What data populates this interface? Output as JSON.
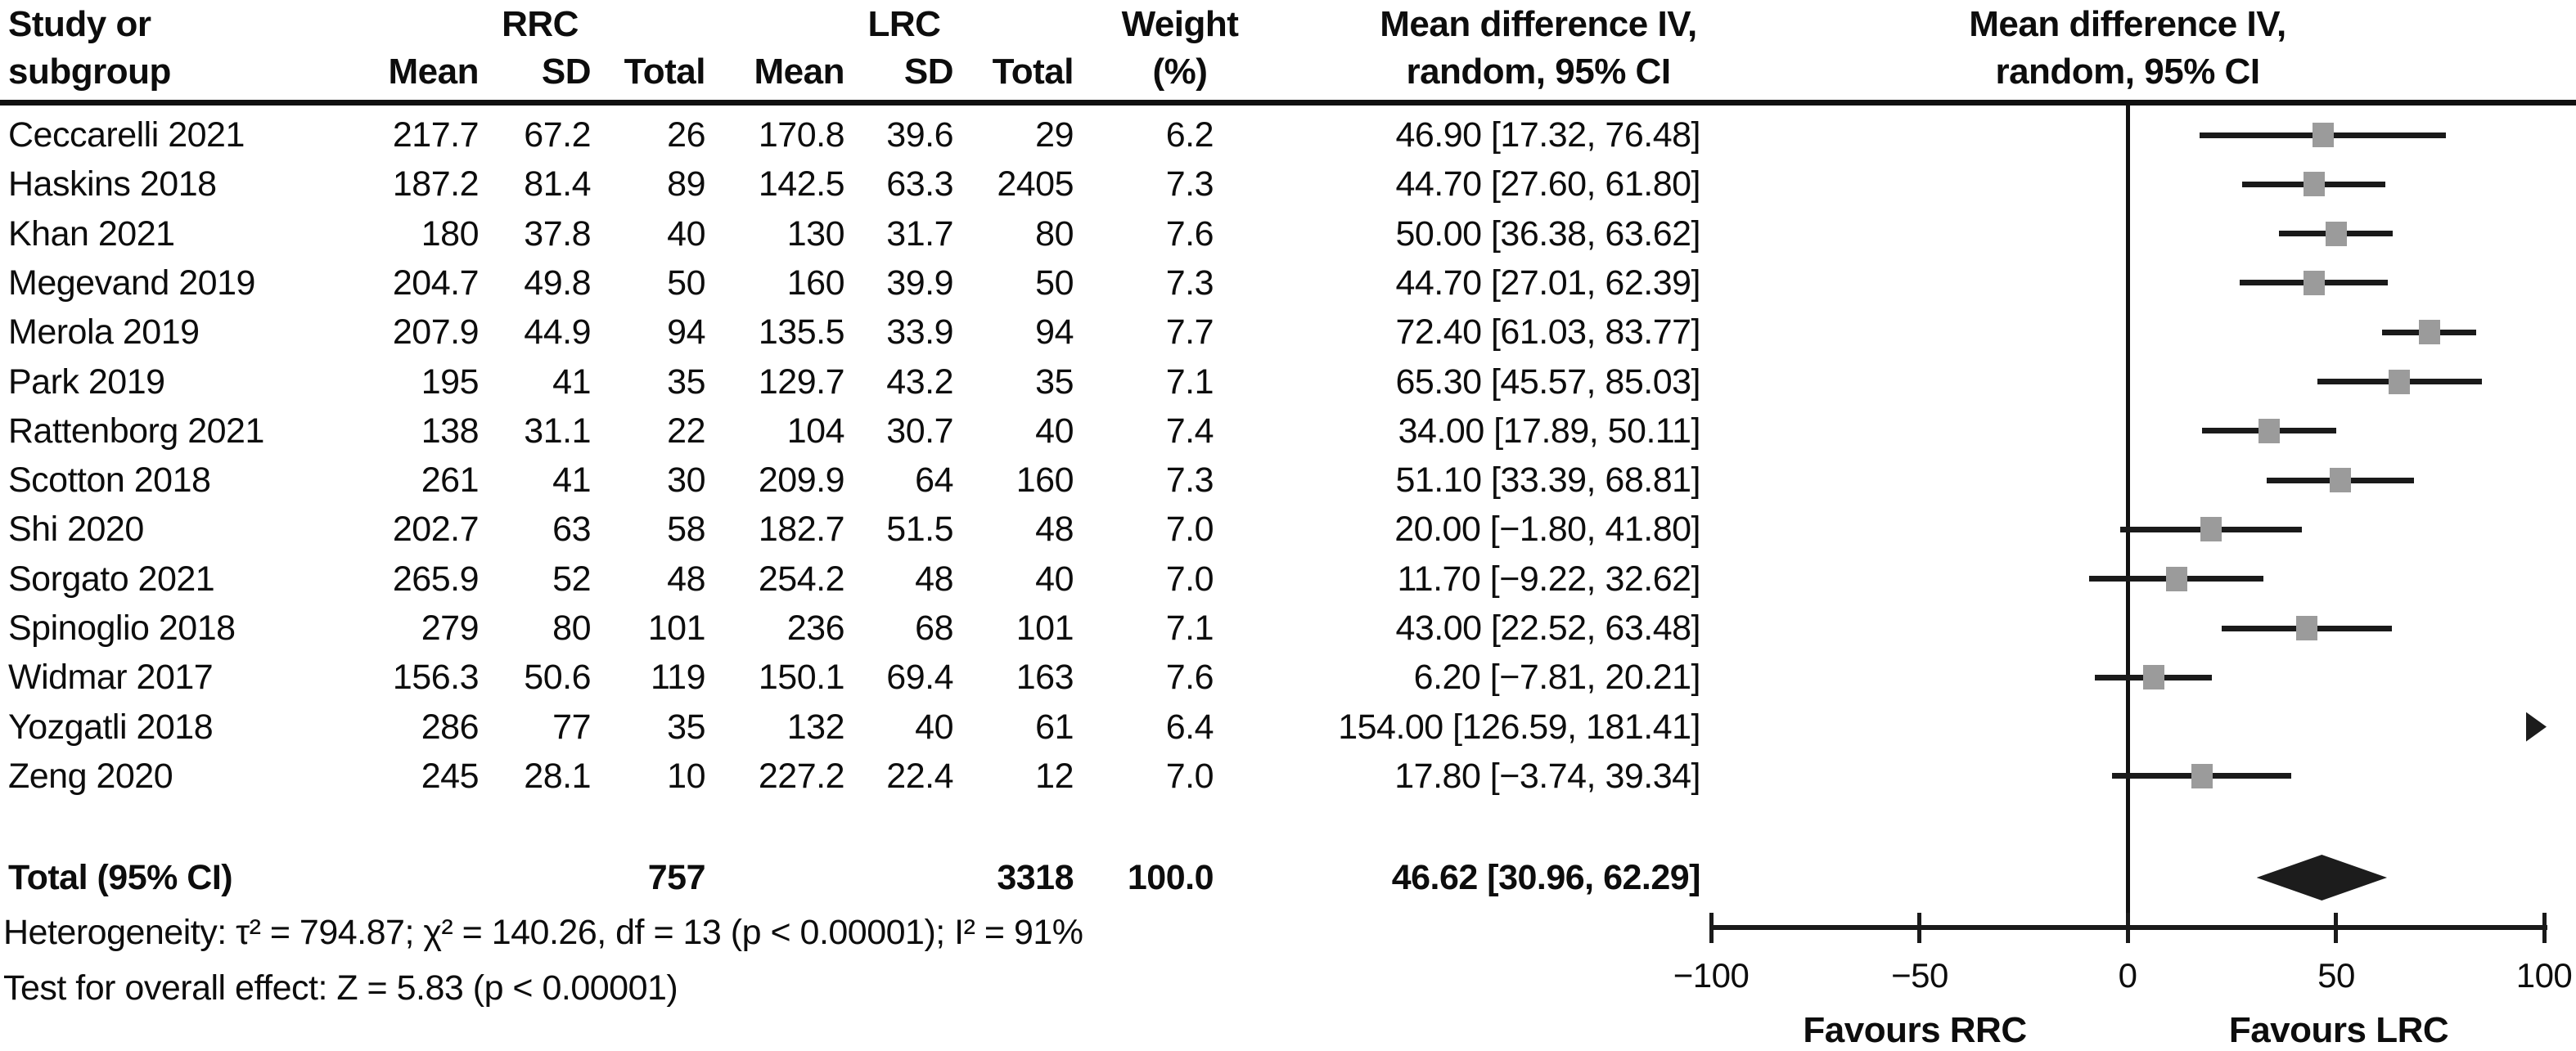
{
  "table": {
    "header": {
      "study_line1": "Study or",
      "study_line2": "subgroup",
      "group_rrc": "RRC",
      "group_lrc": "LRC",
      "rrc_mean": "Mean",
      "rrc_sd": "SD",
      "rrc_total": "Total",
      "lrc_mean": "Mean",
      "lrc_sd": "SD",
      "lrc_total": "Total",
      "weight_line1": "Weight",
      "weight_line2": "(%)",
      "effect_line1": "Mean difference IV,",
      "effect_line2": "random, 95% CI"
    },
    "rows": [
      {
        "name": "Ceccarelli 2021",
        "rrc_mean": "217.7",
        "rrc_sd": "67.2",
        "rrc_total": "26",
        "lrc_mean": "170.8",
        "lrc_sd": "39.6",
        "lrc_total": "29",
        "weight": "6.2",
        "effect": "46.90 [17.32, 76.48]"
      },
      {
        "name": "Haskins 2018",
        "rrc_mean": "187.2",
        "rrc_sd": "81.4",
        "rrc_total": "89",
        "lrc_mean": "142.5",
        "lrc_sd": "63.3",
        "lrc_total": "2405",
        "weight": "7.3",
        "effect": "44.70 [27.60, 61.80]"
      },
      {
        "name": "Khan 2021",
        "rrc_mean": "180",
        "rrc_sd": "37.8",
        "rrc_total": "40",
        "lrc_mean": "130",
        "lrc_sd": "31.7",
        "lrc_total": "80",
        "weight": "7.6",
        "effect": "50.00 [36.38, 63.62]"
      },
      {
        "name": "Megevand 2019",
        "rrc_mean": "204.7",
        "rrc_sd": "49.8",
        "rrc_total": "50",
        "lrc_mean": "160",
        "lrc_sd": "39.9",
        "lrc_total": "50",
        "weight": "7.3",
        "effect": "44.70 [27.01, 62.39]"
      },
      {
        "name": "Merola 2019",
        "rrc_mean": "207.9",
        "rrc_sd": "44.9",
        "rrc_total": "94",
        "lrc_mean": "135.5",
        "lrc_sd": "33.9",
        "lrc_total": "94",
        "weight": "7.7",
        "effect": "72.40 [61.03, 83.77]"
      },
      {
        "name": "Park 2019",
        "rrc_mean": "195",
        "rrc_sd": "41",
        "rrc_total": "35",
        "lrc_mean": "129.7",
        "lrc_sd": "43.2",
        "lrc_total": "35",
        "weight": "7.1",
        "effect": "65.30 [45.57, 85.03]"
      },
      {
        "name": "Rattenborg 2021",
        "rrc_mean": "138",
        "rrc_sd": "31.1",
        "rrc_total": "22",
        "lrc_mean": "104",
        "lrc_sd": "30.7",
        "lrc_total": "40",
        "weight": "7.4",
        "effect": "34.00 [17.89, 50.11]"
      },
      {
        "name": "Scotton 2018",
        "rrc_mean": "261",
        "rrc_sd": "41",
        "rrc_total": "30",
        "lrc_mean": "209.9",
        "lrc_sd": "64",
        "lrc_total": "160",
        "weight": "7.3",
        "effect": "51.10 [33.39, 68.81]"
      },
      {
        "name": "Shi 2020",
        "rrc_mean": "202.7",
        "rrc_sd": "63",
        "rrc_total": "58",
        "lrc_mean": "182.7",
        "lrc_sd": "51.5",
        "lrc_total": "48",
        "weight": "7.0",
        "effect": "20.00 [−1.80, 41.80]"
      },
      {
        "name": "Sorgato 2021",
        "rrc_mean": "265.9",
        "rrc_sd": "52",
        "rrc_total": "48",
        "lrc_mean": "254.2",
        "lrc_sd": "48",
        "lrc_total": "40",
        "weight": "7.0",
        "effect": "11.70 [−9.22, 32.62]"
      },
      {
        "name": "Spinoglio 2018",
        "rrc_mean": "279",
        "rrc_sd": "80",
        "rrc_total": "101",
        "lrc_mean": "236",
        "lrc_sd": "68",
        "lrc_total": "101",
        "weight": "7.1",
        "effect": "43.00 [22.52, 63.48]"
      },
      {
        "name": "Widmar 2017",
        "rrc_mean": "156.3",
        "rrc_sd": "50.6",
        "rrc_total": "119",
        "lrc_mean": "150.1",
        "lrc_sd": "69.4",
        "lrc_total": "163",
        "weight": "7.6",
        "effect": "6.20 [−7.81, 20.21]"
      },
      {
        "name": "Yozgatli 2018",
        "rrc_mean": "286",
        "rrc_sd": "77",
        "rrc_total": "35",
        "lrc_mean": "132",
        "lrc_sd": "40",
        "lrc_total": "61",
        "weight": "6.4",
        "effect": "154.00 [126.59, 181.41]"
      },
      {
        "name": "Zeng 2020",
        "rrc_mean": "245",
        "rrc_sd": "28.1",
        "rrc_total": "10",
        "lrc_mean": "227.2",
        "lrc_sd": "22.4",
        "lrc_total": "12",
        "weight": "7.0",
        "effect": "17.80 [−3.74, 39.34]"
      }
    ],
    "total_row": {
      "label": "Total (95% CI)",
      "rrc_total": "757",
      "lrc_total": "3318",
      "weight": "100.0",
      "effect": "46.62 [30.96, 62.29]"
    }
  },
  "footnotes": {
    "heterogeneity": "Heterogeneity: τ² = 794.87; χ² = 140.26, df = 13 (p < 0.00001); I² = 91%",
    "overall_effect": "Test for overall effect: Z = 5.83 (p < 0.00001)"
  },
  "plot": {
    "header_line1": "Mean difference IV,",
    "header_line2": "random, 95% CI",
    "tick_labels": [
      "−100",
      "−50",
      "0",
      "50",
      "100"
    ],
    "favours_left": "Favours RRC",
    "favours_right": "Favours LRC"
  },
  "chart_data": {
    "type": "forest",
    "effect_measure": "Mean difference IV, random, 95% CI",
    "comparison_left": "RRC",
    "comparison_right": "LRC",
    "xlim": [
      -100,
      100
    ],
    "ticks": [
      -100,
      -50,
      0,
      50,
      100
    ],
    "studies": [
      {
        "name": "Ceccarelli 2021",
        "rrc": {
          "mean": 217.7,
          "sd": 67.2,
          "n": 26
        },
        "lrc": {
          "mean": 170.8,
          "sd": 39.6,
          "n": 29
        },
        "weight_pct": 6.2,
        "md": 46.9,
        "ci_low": 17.32,
        "ci_high": 76.48
      },
      {
        "name": "Haskins 2018",
        "rrc": {
          "mean": 187.2,
          "sd": 81.4,
          "n": 89
        },
        "lrc": {
          "mean": 142.5,
          "sd": 63.3,
          "n": 2405
        },
        "weight_pct": 7.3,
        "md": 44.7,
        "ci_low": 27.6,
        "ci_high": 61.8
      },
      {
        "name": "Khan 2021",
        "rrc": {
          "mean": 180,
          "sd": 37.8,
          "n": 40
        },
        "lrc": {
          "mean": 130,
          "sd": 31.7,
          "n": 80
        },
        "weight_pct": 7.6,
        "md": 50.0,
        "ci_low": 36.38,
        "ci_high": 63.62
      },
      {
        "name": "Megevand 2019",
        "rrc": {
          "mean": 204.7,
          "sd": 49.8,
          "n": 50
        },
        "lrc": {
          "mean": 160,
          "sd": 39.9,
          "n": 50
        },
        "weight_pct": 7.3,
        "md": 44.7,
        "ci_low": 27.01,
        "ci_high": 62.39
      },
      {
        "name": "Merola 2019",
        "rrc": {
          "mean": 207.9,
          "sd": 44.9,
          "n": 94
        },
        "lrc": {
          "mean": 135.5,
          "sd": 33.9,
          "n": 94
        },
        "weight_pct": 7.7,
        "md": 72.4,
        "ci_low": 61.03,
        "ci_high": 83.77
      },
      {
        "name": "Park 2019",
        "rrc": {
          "mean": 195,
          "sd": 41,
          "n": 35
        },
        "lrc": {
          "mean": 129.7,
          "sd": 43.2,
          "n": 35
        },
        "weight_pct": 7.1,
        "md": 65.3,
        "ci_low": 45.57,
        "ci_high": 85.03
      },
      {
        "name": "Rattenborg 2021",
        "rrc": {
          "mean": 138,
          "sd": 31.1,
          "n": 22
        },
        "lrc": {
          "mean": 104,
          "sd": 30.7,
          "n": 40
        },
        "weight_pct": 7.4,
        "md": 34.0,
        "ci_low": 17.89,
        "ci_high": 50.11
      },
      {
        "name": "Scotton 2018",
        "rrc": {
          "mean": 261,
          "sd": 41,
          "n": 30
        },
        "lrc": {
          "mean": 209.9,
          "sd": 64,
          "n": 160
        },
        "weight_pct": 7.3,
        "md": 51.1,
        "ci_low": 33.39,
        "ci_high": 68.81
      },
      {
        "name": "Shi 2020",
        "rrc": {
          "mean": 202.7,
          "sd": 63,
          "n": 58
        },
        "lrc": {
          "mean": 182.7,
          "sd": 51.5,
          "n": 48
        },
        "weight_pct": 7.0,
        "md": 20.0,
        "ci_low": -1.8,
        "ci_high": 41.8
      },
      {
        "name": "Sorgato 2021",
        "rrc": {
          "mean": 265.9,
          "sd": 52,
          "n": 48
        },
        "lrc": {
          "mean": 254.2,
          "sd": 48,
          "n": 40
        },
        "weight_pct": 7.0,
        "md": 11.7,
        "ci_low": -9.22,
        "ci_high": 32.62
      },
      {
        "name": "Spinoglio 2018",
        "rrc": {
          "mean": 279,
          "sd": 80,
          "n": 101
        },
        "lrc": {
          "mean": 236,
          "sd": 68,
          "n": 101
        },
        "weight_pct": 7.1,
        "md": 43.0,
        "ci_low": 22.52,
        "ci_high": 63.48
      },
      {
        "name": "Widmar 2017",
        "rrc": {
          "mean": 156.3,
          "sd": 50.6,
          "n": 119
        },
        "lrc": {
          "mean": 150.1,
          "sd": 69.4,
          "n": 163
        },
        "weight_pct": 7.6,
        "md": 6.2,
        "ci_low": -7.81,
        "ci_high": 20.21
      },
      {
        "name": "Yozgatli 2018",
        "rrc": {
          "mean": 286,
          "sd": 77,
          "n": 35
        },
        "lrc": {
          "mean": 132,
          "sd": 40,
          "n": 61
        },
        "weight_pct": 6.4,
        "md": 154.0,
        "ci_low": 126.59,
        "ci_high": 181.41,
        "offscale_right": true
      },
      {
        "name": "Zeng 2020",
        "rrc": {
          "mean": 245,
          "sd": 28.1,
          "n": 10
        },
        "lrc": {
          "mean": 227.2,
          "sd": 22.4,
          "n": 12
        },
        "weight_pct": 7.0,
        "md": 17.8,
        "ci_low": -3.74,
        "ci_high": 39.34
      }
    ],
    "total": {
      "label": "Total (95% CI)",
      "n_rrc": 757,
      "n_lrc": 3318,
      "weight_pct": 100.0,
      "md": 46.62,
      "ci_low": 30.96,
      "ci_high": 62.29
    },
    "heterogeneity": {
      "tau2": 794.87,
      "chi2": 140.26,
      "df": 13,
      "p": "< 0.00001",
      "i2_pct": 91
    },
    "overall_effect": {
      "z": 5.83,
      "p": "< 0.00001"
    },
    "marker_color": "#9b9b9b",
    "line_color": "#1a1a1a"
  }
}
